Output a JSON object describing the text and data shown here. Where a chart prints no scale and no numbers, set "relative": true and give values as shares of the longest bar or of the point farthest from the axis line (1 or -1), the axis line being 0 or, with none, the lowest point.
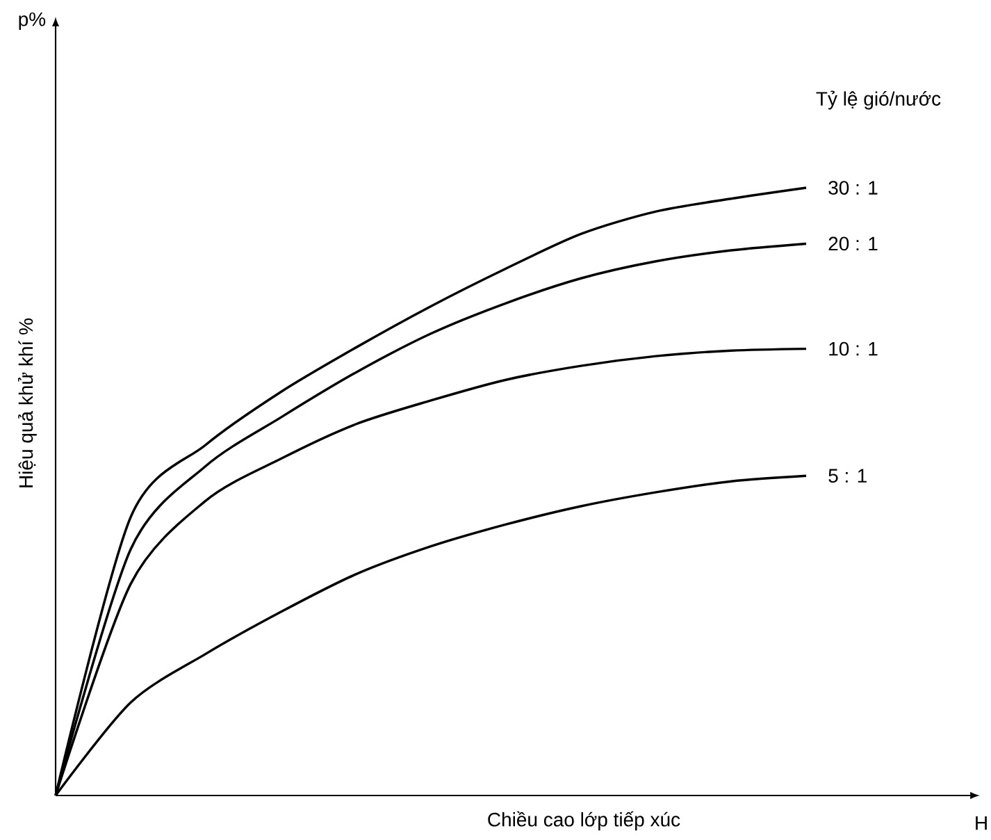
{
  "chart_data": {
    "type": "line",
    "relative": true,
    "xlabel": "Chiều cao lớp tiếp xúc",
    "ylabel": "Hiệu quả khử khí %",
    "legend_title": "Tỷ lệ gió/nước",
    "annotations": [
      "p%",
      "H"
    ],
    "categories": [
      null,
      null,
      null,
      null,
      null,
      null,
      null,
      null,
      null,
      null,
      null
    ],
    "series": [
      {
        "name": "30 : 1",
        "color": "#000000",
        "values": [
          0,
          0.458,
          0.577,
          0.664,
          0.737,
          0.805,
          0.867,
          0.924,
          0.961,
          0.982,
          1
        ]
      },
      {
        "name": "20 : 1",
        "color": "#000000",
        "values": [
          0,
          0.405,
          0.542,
          0.622,
          0.696,
          0.76,
          0.81,
          0.851,
          0.879,
          0.897,
          0.908
        ]
      },
      {
        "name": "10 : 1",
        "color": "#000000",
        "values": [
          0,
          0.348,
          0.485,
          0.554,
          0.611,
          0.65,
          0.684,
          0.707,
          0.723,
          0.732,
          0.735
        ]
      },
      {
        "name": "5 : 1",
        "color": "#000000",
        "values": [
          0,
          0.153,
          0.233,
          0.302,
          0.364,
          0.41,
          0.446,
          0.476,
          0.499,
          0.517,
          0.526
        ]
      }
    ]
  }
}
